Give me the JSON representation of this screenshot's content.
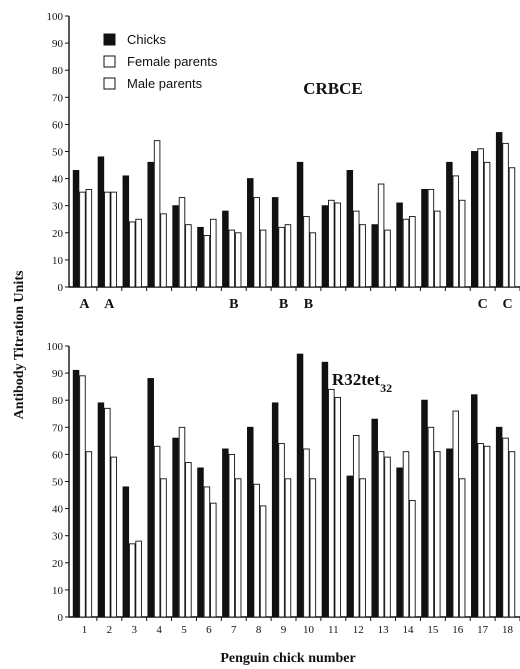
{
  "chart_data": [
    {
      "type": "bar",
      "title": "CRBCE",
      "ylim": [
        0,
        100
      ],
      "yticks": [
        0,
        10,
        20,
        30,
        40,
        50,
        60,
        70,
        80,
        90,
        100
      ],
      "categories": [
        "1",
        "2",
        "3",
        "4",
        "5",
        "6",
        "7",
        "8",
        "9",
        "10",
        "11",
        "12",
        "13",
        "14",
        "15",
        "16",
        "17",
        "18"
      ],
      "series": [
        {
          "name": "Chicks",
          "color": "#111111",
          "values": [
            43,
            48,
            41,
            46,
            30,
            22,
            28,
            40,
            33,
            46,
            30,
            43,
            23,
            31,
            36,
            46,
            50,
            57
          ]
        },
        {
          "name": "Female parents",
          "color": "#ffffff",
          "values": [
            35,
            35,
            24,
            54,
            33,
            19,
            21,
            33,
            22,
            26,
            32,
            28,
            38,
            25,
            36,
            41,
            51,
            53
          ]
        },
        {
          "name": "Male parents",
          "color": "#ffffff",
          "values": [
            36,
            35,
            25,
            27,
            23,
            25,
            20,
            21,
            23,
            20,
            31,
            23,
            21,
            26,
            28,
            32,
            46,
            44
          ]
        }
      ],
      "group_labels": [
        {
          "category": "1",
          "text": "A"
        },
        {
          "category": "2",
          "text": "A"
        },
        {
          "category": "7",
          "text": "B"
        },
        {
          "category": "9",
          "text": "B"
        },
        {
          "category": "10",
          "text": "B"
        },
        {
          "category": "17",
          "text": "C"
        },
        {
          "category": "18",
          "text": "C"
        }
      ],
      "legend_position": "top-left"
    },
    {
      "type": "bar",
      "title": "R32tet",
      "title_subscript": "32",
      "ylim": [
        0,
        100
      ],
      "yticks": [
        0,
        10,
        20,
        30,
        40,
        50,
        60,
        70,
        80,
        90,
        100
      ],
      "categories": [
        "1",
        "2",
        "3",
        "4",
        "5",
        "6",
        "7",
        "8",
        "9",
        "10",
        "11",
        "12",
        "13",
        "14",
        "15",
        "16",
        "17",
        "18"
      ],
      "series": [
        {
          "name": "Chicks",
          "color": "#111111",
          "values": [
            91,
            79,
            48,
            88,
            66,
            55,
            62,
            70,
            79,
            97,
            94,
            52,
            73,
            55,
            80,
            62,
            82,
            70
          ]
        },
        {
          "name": "Female parents",
          "color": "#ffffff",
          "values": [
            89,
            77,
            27,
            63,
            70,
            48,
            60,
            49,
            64,
            62,
            84,
            67,
            61,
            61,
            70,
            76,
            64,
            66
          ]
        },
        {
          "name": "Male parents",
          "color": "#ffffff",
          "values": [
            61,
            59,
            28,
            51,
            57,
            42,
            51,
            41,
            51,
            51,
            81,
            51,
            59,
            43,
            61,
            51,
            63,
            61
          ]
        }
      ]
    }
  ],
  "axes": {
    "ylabel": "Antibody Titration Units",
    "xlabel": "Penguin chick number"
  }
}
